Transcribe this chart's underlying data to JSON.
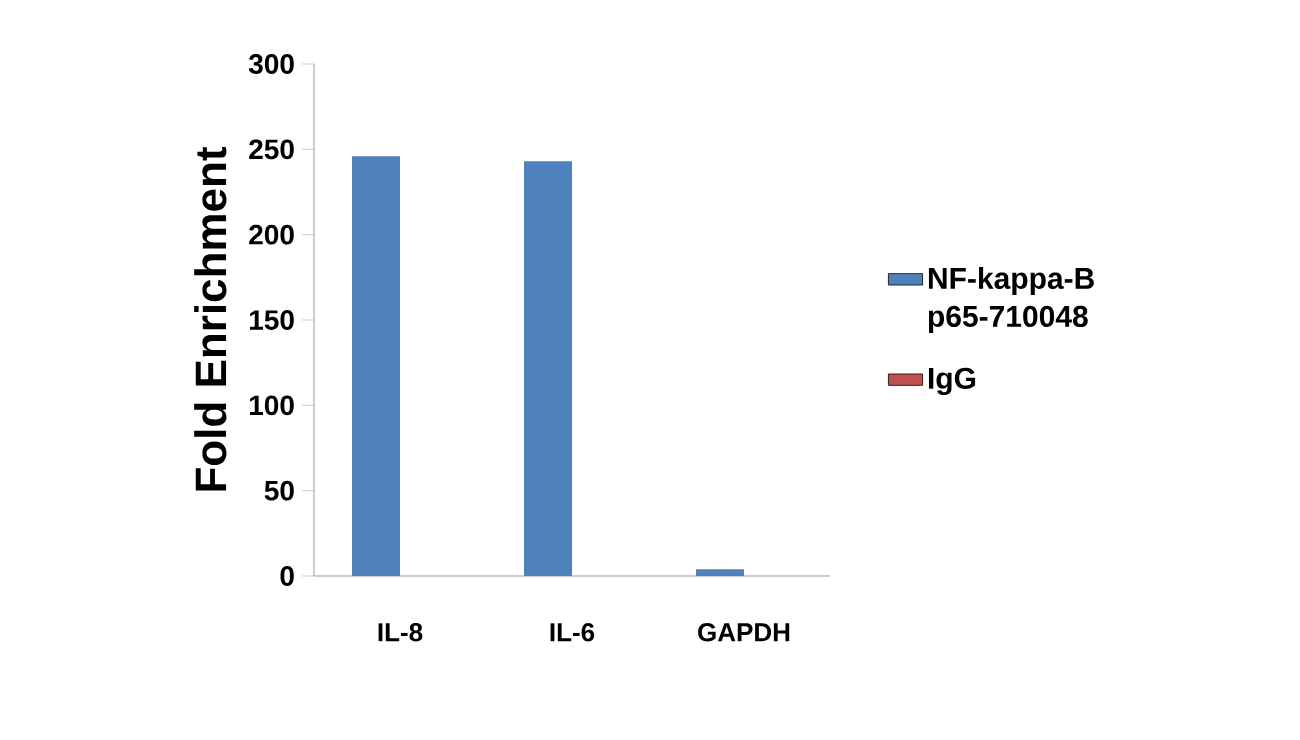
{
  "chart_data": {
    "type": "bar",
    "ylabel": "Fold Enrichment",
    "categories": [
      "IL-8",
      "IL-6",
      "GAPDH"
    ],
    "series": [
      {
        "name": "NF-kappa-B p65-710048",
        "color": "#4f81bd",
        "values": [
          246,
          243,
          4
        ]
      },
      {
        "name": "IgG",
        "color": "#c0504d",
        "values": [
          0,
          0,
          0
        ]
      }
    ],
    "ylim": [
      0,
      300
    ],
    "yticks": [
      0,
      50,
      100,
      150,
      200,
      250,
      300
    ],
    "legend": "right",
    "grid": false
  }
}
